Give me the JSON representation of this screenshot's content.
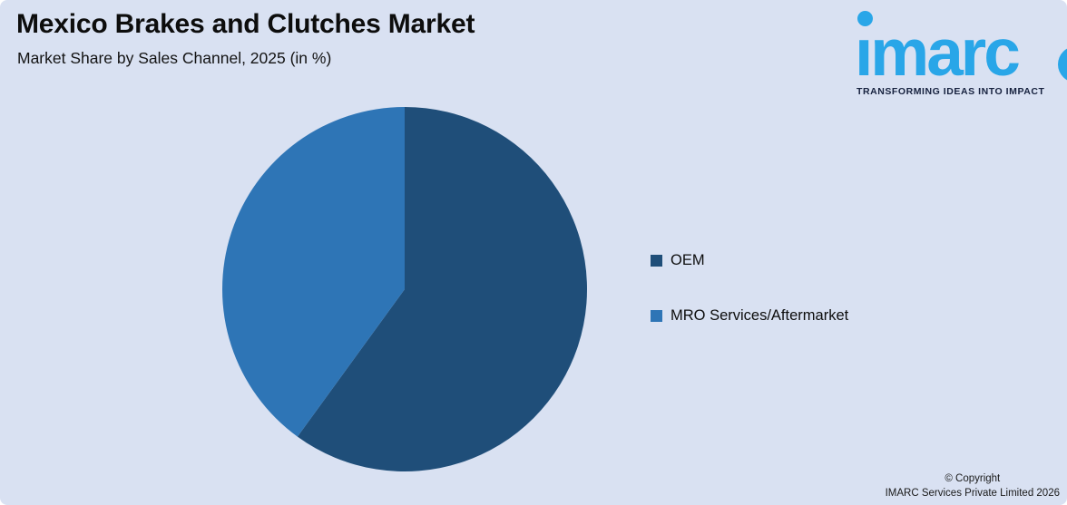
{
  "header": {
    "title": "Mexico Brakes and Clutches Market",
    "subtitle": "Market Share by Sales Channel, 2025 (in %)"
  },
  "logo": {
    "brand": "imarc",
    "brand_render_text": "ımarc",
    "tagline": "TRANSFORMING IDEAS INTO IMPACT",
    "brand_color": "#29A6E8",
    "tagline_color": "#16213E"
  },
  "chart_data": {
    "type": "pie",
    "title": "Market Share by Sales Channel, 2025 (in %)",
    "categories": [
      "OEM",
      "MRO Services/Aftermarket"
    ],
    "values": [
      60,
      40
    ],
    "slices": [
      {
        "label": "OEM",
        "value": 60,
        "color": "#1F4E79"
      },
      {
        "label": "MRO Services/Aftermarket",
        "value": 40,
        "color": "#2E75B6"
      }
    ],
    "start_angle_deg": 0,
    "direction": "clockwise",
    "legend_position": "right",
    "data_labels": false
  },
  "legend": {
    "items": [
      {
        "label": "OEM",
        "color": "#1F4E79"
      },
      {
        "label": "MRO Services/Aftermarket",
        "color": "#2E75B6"
      }
    ]
  },
  "footer": {
    "line1": "© Copyright",
    "line2": "IMARC Services Private Limited 2026"
  },
  "colors": {
    "background": "#D9E1F2"
  }
}
